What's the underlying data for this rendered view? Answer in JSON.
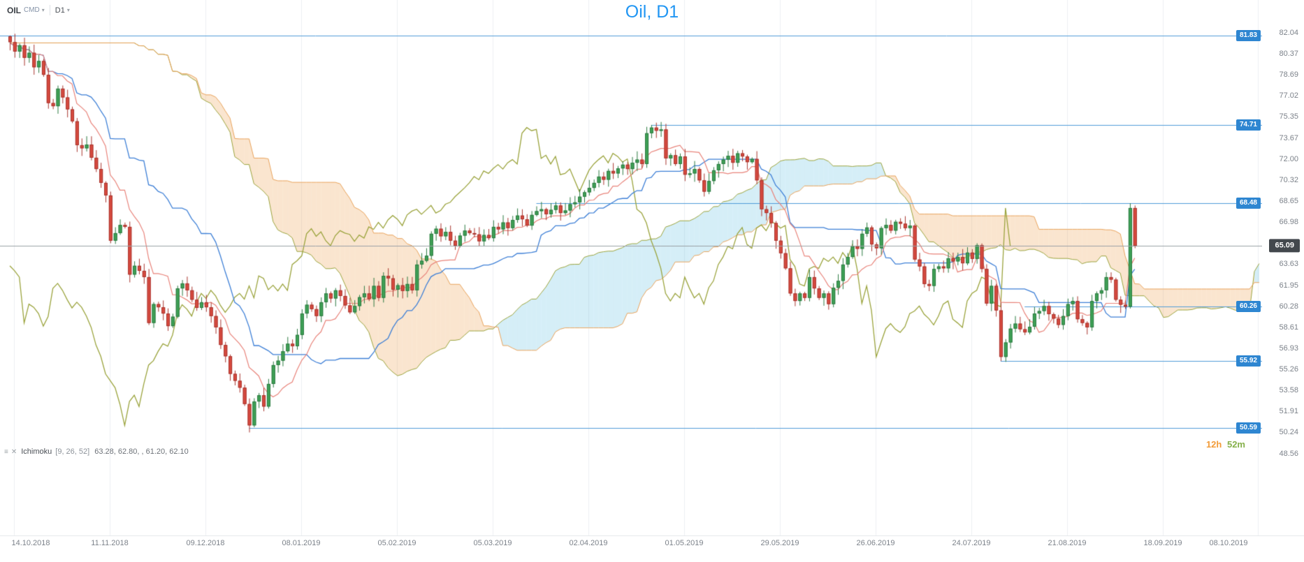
{
  "header": {
    "symbol": "OIL",
    "market": "CMD",
    "timeframe": "D1",
    "caret": "▾"
  },
  "title": "Oil, D1",
  "icons": {
    "settings": "≡",
    "remove": "✕"
  },
  "indicator": {
    "name": "Ichimoku",
    "params": "[9, 26, 52]",
    "values": "63.28,  62.80,  , 61.20,  62.10"
  },
  "countdown": {
    "hours": "12h",
    "minutes": "52m"
  },
  "current_price": {
    "value": 65.09,
    "label": "65.09"
  },
  "y_axis": {
    "ticks": [
      "82.04",
      "80.37",
      "78.69",
      "77.02",
      "75.35",
      "73.67",
      "72.00",
      "70.32",
      "68.65",
      "66.98",
      "63.63",
      "61.95",
      "60.28",
      "58.61",
      "56.93",
      "55.26",
      "53.58",
      "51.91",
      "50.24",
      "48.56"
    ]
  },
  "x_axis": {
    "dates": [
      "14.10.2018",
      "11.11.2018",
      "09.12.2018",
      "08.01.2019",
      "05.02.2019",
      "05.03.2019",
      "02.04.2019",
      "01.05.2019",
      "29.05.2019",
      "26.06.2019",
      "24.07.2019",
      "21.08.2019",
      "18.09.2019",
      "08.10.2019"
    ]
  },
  "levels": [
    {
      "label": "81.83",
      "value": 81.83,
      "start_index": 0
    },
    {
      "label": "74.71",
      "value": 74.71,
      "start_index": 134
    },
    {
      "label": "68.48",
      "value": 68.48,
      "start_index": 110
    },
    {
      "label": "60.26",
      "value": 60.26,
      "start_index": 212
    },
    {
      "label": "55.92",
      "value": 55.92,
      "start_index": 207
    },
    {
      "label": "50.59",
      "value": 50.59,
      "start_index": 50
    }
  ],
  "chart_data": {
    "type": "candlestick",
    "instrument": "OIL",
    "timeframe": "D1",
    "title": "Oil, D1",
    "overlay_indicator": "Ichimoku",
    "ichimoku_periods": [
      9,
      26,
      52
    ],
    "ichimoku_displacement": 26,
    "ylim": [
      48.56,
      82.04
    ],
    "x_start_date": "14.10.2018",
    "x_end_date": "08.10.2019",
    "closes": [
      81.3,
      80.55,
      81.05,
      80.05,
      80.45,
      79.3,
      79.8,
      78.7,
      76.45,
      76.2,
      77.6,
      76.9,
      75.95,
      75.0,
      73.1,
      72.85,
      73.15,
      72.1,
      71.2,
      70.1,
      69.1,
      65.5,
      66.1,
      66.75,
      66.6,
      62.8,
      63.5,
      63.1,
      62.6,
      58.95,
      60.45,
      60.2,
      59.7,
      58.7,
      59.45,
      61.7,
      62.1,
      61.55,
      60.8,
      60.15,
      60.6,
      60.2,
      59.5,
      58.6,
      57.2,
      56.3,
      54.9,
      54.35,
      53.8,
      52.5,
      50.8,
      52.7,
      53.2,
      52.3,
      54.1,
      55.6,
      55.95,
      56.7,
      57.3,
      57.1,
      58.0,
      59.7,
      60.4,
      60.05,
      59.5,
      60.6,
      61.3,
      60.9,
      61.55,
      61.1,
      60.35,
      59.8,
      60.3,
      61.0,
      61.3,
      60.85,
      61.9,
      60.95,
      62.7,
      62.5,
      61.6,
      61.95,
      61.5,
      62.05,
      61.55,
      63.6,
      63.9,
      64.3,
      66.05,
      66.45,
      65.85,
      66.2,
      65.5,
      65.1,
      65.9,
      66.3,
      66.1,
      66.0,
      65.45,
      65.95,
      65.7,
      66.6,
      66.4,
      66.95,
      66.5,
      67.15,
      67.5,
      67.2,
      66.7,
      67.55,
      67.85,
      68.0,
      67.6,
      67.95,
      68.3,
      67.7,
      67.9,
      68.4,
      68.55,
      69.0,
      69.35,
      69.7,
      70.1,
      70.6,
      70.35,
      71.05,
      70.85,
      71.25,
      71.55,
      71.2,
      71.7,
      71.95,
      71.6,
      74.05,
      74.5,
      74.25,
      74.35,
      72.05,
      72.3,
      71.6,
      72.2,
      70.75,
      70.85,
      71.2,
      70.3,
      69.4,
      70.25,
      71.1,
      71.6,
      71.95,
      72.25,
      71.7,
      72.45,
      72.2,
      71.75,
      72.0,
      70.3,
      68.0,
      67.7,
      66.9,
      65.5,
      64.5,
      63.3,
      61.3,
      60.7,
      61.3,
      60.95,
      62.6,
      61.7,
      60.95,
      61.3,
      60.45,
      61.75,
      62.3,
      63.6,
      64.2,
      65.05,
      64.85,
      66.05,
      66.55,
      65.2,
      64.9,
      66.5,
      66.75,
      66.3,
      67.0,
      66.85,
      66.5,
      66.7,
      64.0,
      63.45,
      62.05,
      61.9,
      63.25,
      63.45,
      63.3,
      64.1,
      63.85,
      64.2,
      63.7,
      64.55,
      64.05,
      65.15,
      63.25,
      60.5,
      61.9,
      59.95,
      56.25,
      57.4,
      58.5,
      58.9,
      58.45,
      58.2,
      58.65,
      59.7,
      59.9,
      60.3,
      59.65,
      59.3,
      58.8,
      59.5,
      60.45,
      60.7,
      59.25,
      58.95,
      58.6,
      60.7,
      61.3,
      61.55,
      62.6,
      62.4,
      60.8,
      60.4,
      60.25,
      68.1,
      65.09
    ],
    "wick_overrides": {
      "0": {
        "high": 81.83
      },
      "50": {
        "low": 50.24
      },
      "134": {
        "high": 74.71
      },
      "207": {
        "low": 55.92
      },
      "234": {
        "high": 68.48,
        "low": 60.1
      },
      "235": {
        "high": 68.3,
        "low": 64.9
      }
    },
    "colors": {
      "title": "#2196f3",
      "bull": "#3fa156",
      "bull_border": "#2c7a41",
      "bear": "#d74a3f",
      "bear_border": "#a8352e",
      "tenkan": "#e8837a",
      "kijun": "#3d7fd6",
      "senkou_a": "#9aa33c",
      "senkou_b": "#e8a25a",
      "chikou": "#9aa33c",
      "cloud_bull": "rgba(105,195,225,0.28)",
      "cloud_bear": "rgba(240,170,95,0.30)",
      "level": "#4f9bd8",
      "level_badge": "#2e86d1",
      "price_line": "#9aa0a5",
      "price_badge": "#43484d",
      "countdown_hours": "#f29b38",
      "countdown_minutes": "#85b04a"
    }
  }
}
